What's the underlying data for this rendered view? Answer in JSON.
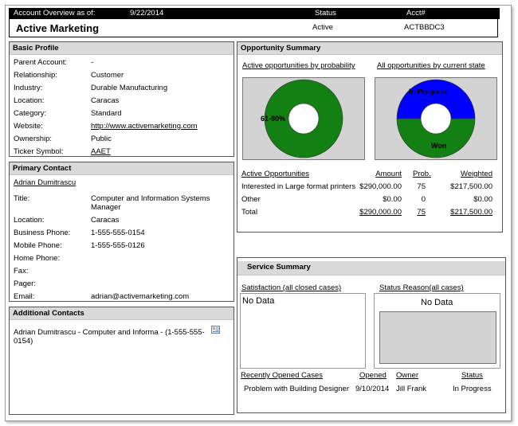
{
  "header": {
    "overview_label": "Account Overview as of:",
    "date": "9/22/2014",
    "status_label": "Status",
    "acct_label": "Acct#",
    "account_name": "Active Marketing",
    "status_value": "Active",
    "acct_value": "ACTBBDC3"
  },
  "basic_profile": {
    "title": "Basic Profile",
    "rows": [
      {
        "label": "Parent Account:",
        "value": "-"
      },
      {
        "label": "Relationship:",
        "value": "Customer"
      },
      {
        "label": "Industry:",
        "value": "Durable Manufacturing"
      },
      {
        "label": "Location:",
        "value": "Caracas"
      },
      {
        "label": "Category:",
        "value": "Standard"
      },
      {
        "label": "Website:",
        "value": "http://www.activemarketing.com"
      },
      {
        "label": "Ownership:",
        "value": "Public"
      },
      {
        "label": "Ticker Symbol:",
        "value": "AAET"
      }
    ]
  },
  "primary_contact": {
    "title": "Primary Contact",
    "name": "Adrian Dumitrascu",
    "title_label": "Title:",
    "title_value_1": "Computer and Information Systems",
    "title_value_2": "Manager",
    "rows": [
      {
        "label": "Location:",
        "value": "Caracas"
      },
      {
        "label": "Business Phone:",
        "value": "1-555-555-0154"
      },
      {
        "label": "Mobile Phone:",
        "value": "1-555-555-0126"
      },
      {
        "label": "Home Phone:",
        "value": ""
      },
      {
        "label": "Fax:",
        "value": ""
      },
      {
        "label": "Pager:",
        "value": ""
      },
      {
        "label": "Email:",
        "value": "adrian@activemarketing.com"
      }
    ]
  },
  "additional_contacts": {
    "title": "Additional Contacts",
    "line1": "Adrian Dumitrascu - Computer and Informa - (1-555-555-",
    "line2": "0154)",
    "icon": "contact-card-icon"
  },
  "opportunity_summary": {
    "title": "Opportunity Summary",
    "chart1_title": "Active opportunities by probability",
    "chart2_title": "All opportunities by current state",
    "table_headers": [
      "Active Opportunities",
      "Amount",
      "Prob.",
      "Weighted"
    ],
    "rows": [
      {
        "name": "Interested in Large format printers",
        "amount": "$290,000.00",
        "prob": "75",
        "weighted": "$217,500.00"
      },
      {
        "name": "Other",
        "amount": "$0.00",
        "prob": "0",
        "weighted": "$0.00"
      },
      {
        "name": "Total",
        "amount": "$290,000.00",
        "prob": "75",
        "weighted": "$217,500.00"
      }
    ]
  },
  "service_summary": {
    "title": "Service Summary",
    "satisfaction_title": "Satisfaction (all closed cases)",
    "satisfaction_nodata": "No Data",
    "status_reason_title": "Status Reason(all cases)",
    "status_reason_nodata": "No Data",
    "table_headers": [
      "Recently Opened Cases",
      "Opened",
      "Owner",
      "Status"
    ],
    "rows": [
      {
        "case": "Problem with Building Designer",
        "opened": "9/10/2014",
        "owner": "Jill Frank",
        "status": "In Progress"
      }
    ]
  },
  "chart_data": [
    {
      "type": "pie",
      "title": "Active opportunities by probability",
      "categories": [
        "61-80%"
      ],
      "values": [
        100
      ],
      "colors": [
        "#128012"
      ],
      "donut": true
    },
    {
      "type": "pie",
      "title": "All opportunities by current state",
      "categories": [
        "In Progress",
        "Won"
      ],
      "values": [
        50,
        50
      ],
      "colors": [
        "#0000ff",
        "#128012"
      ],
      "donut": true
    }
  ]
}
